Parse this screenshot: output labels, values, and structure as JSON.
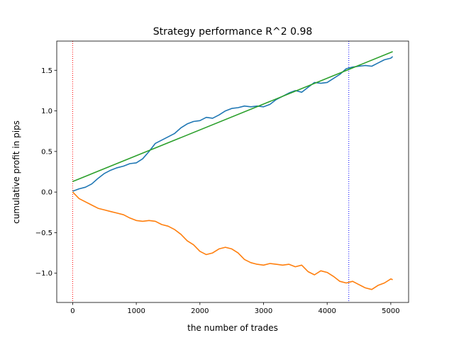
{
  "chart_data": {
    "type": "line",
    "title": "Strategy performance R^2 0.98",
    "xlabel": "the number of trades",
    "ylabel": "cumulative profit in pips",
    "xlim": [
      -250,
      5280
    ],
    "ylim": [
      -1.36,
      1.86
    ],
    "xticks": [
      0,
      1000,
      2000,
      3000,
      4000,
      5000
    ],
    "yticks": [
      -1.0,
      -0.5,
      0.0,
      0.5,
      1.0,
      1.5
    ],
    "xtick_labels": [
      "0",
      "1000",
      "2000",
      "3000",
      "4000",
      "5000"
    ],
    "ytick_labels": [
      "−1.0",
      "−0.5",
      "0.0",
      "0.5",
      "1.0",
      "1.5"
    ],
    "grid": false,
    "legend": "none",
    "series": [
      {
        "color": "#1f77b4",
        "style": "solid",
        "x": [
          0,
          100,
          200,
          300,
          400,
          500,
          600,
          700,
          800,
          900,
          1000,
          1100,
          1200,
          1300,
          1400,
          1500,
          1600,
          1700,
          1800,
          1900,
          2000,
          2100,
          2200,
          2300,
          2400,
          2500,
          2600,
          2700,
          2800,
          2900,
          3000,
          3100,
          3200,
          3300,
          3400,
          3500,
          3600,
          3700,
          3800,
          3900,
          4000,
          4100,
          4200,
          4300,
          4400,
          4500,
          4600,
          4700,
          4800,
          4900,
          5000,
          5030
        ],
        "y": [
          0.01,
          0.04,
          0.06,
          0.1,
          0.17,
          0.23,
          0.27,
          0.3,
          0.32,
          0.35,
          0.36,
          0.41,
          0.5,
          0.6,
          0.64,
          0.68,
          0.72,
          0.79,
          0.84,
          0.87,
          0.88,
          0.92,
          0.91,
          0.95,
          1.0,
          1.03,
          1.04,
          1.06,
          1.05,
          1.06,
          1.05,
          1.08,
          1.14,
          1.18,
          1.22,
          1.25,
          1.23,
          1.29,
          1.35,
          1.34,
          1.35,
          1.4,
          1.45,
          1.52,
          1.54,
          1.55,
          1.56,
          1.55,
          1.59,
          1.63,
          1.65,
          1.67
        ]
      },
      {
        "color": "#ff7f0e",
        "style": "solid",
        "x": [
          0,
          100,
          200,
          300,
          400,
          500,
          600,
          700,
          800,
          900,
          1000,
          1100,
          1200,
          1300,
          1400,
          1500,
          1600,
          1700,
          1800,
          1900,
          2000,
          2100,
          2200,
          2300,
          2400,
          2500,
          2600,
          2700,
          2800,
          2900,
          3000,
          3100,
          3200,
          3300,
          3400,
          3500,
          3600,
          3700,
          3800,
          3900,
          4000,
          4100,
          4200,
          4300,
          4400,
          4500,
          4600,
          4700,
          4800,
          4900,
          5000,
          5030
        ],
        "y": [
          0.0,
          -0.08,
          -0.12,
          -0.16,
          -0.2,
          -0.22,
          -0.24,
          -0.26,
          -0.28,
          -0.32,
          -0.35,
          -0.36,
          -0.35,
          -0.36,
          -0.4,
          -0.42,
          -0.46,
          -0.52,
          -0.6,
          -0.65,
          -0.73,
          -0.77,
          -0.75,
          -0.7,
          -0.68,
          -0.7,
          -0.75,
          -0.83,
          -0.87,
          -0.89,
          -0.9,
          -0.88,
          -0.89,
          -0.9,
          -0.89,
          -0.92,
          -0.9,
          -0.98,
          -1.02,
          -0.97,
          -0.99,
          -1.04,
          -1.1,
          -1.12,
          -1.1,
          -1.14,
          -1.18,
          -1.2,
          -1.15,
          -1.12,
          -1.07,
          -1.08
        ]
      },
      {
        "color": "#2ca02c",
        "style": "solid",
        "x": [
          0,
          5030
        ],
        "y": [
          0.13,
          1.73
        ]
      }
    ],
    "vlines": [
      {
        "x": 0,
        "color": "#ff0000",
        "style": "dotted"
      },
      {
        "x": 4340,
        "color": "#0000ff",
        "style": "dotted"
      }
    ]
  }
}
